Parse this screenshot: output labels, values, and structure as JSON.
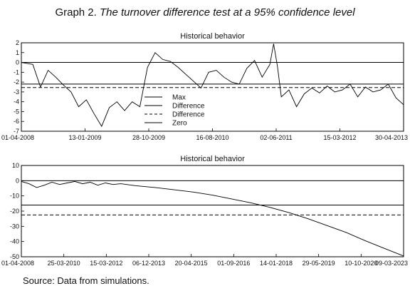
{
  "title_prefix": "Graph 2.",
  "title_italic": "The turnover difference test at a 95% confidence level",
  "source": "Source: Data from simulations.",
  "chart_data": [
    {
      "type": "line",
      "title": "Historical behavior",
      "x_tick_labels": [
        "01-04-2008",
        "13-01-2009",
        "28-10-2009",
        "16-08-2010",
        "02-06-2011",
        "15-03-2012",
        "30-04-2013"
      ],
      "ylim": [
        -7,
        2
      ],
      "yticks": [
        2,
        1,
        0,
        -1,
        -2,
        -3,
        -4,
        -5,
        -6,
        -7
      ],
      "legend": [
        "Max",
        "Difference",
        "Difference",
        "Zero"
      ],
      "legend_position": "center",
      "reference_lines": [
        {
          "style": "solid",
          "value": 0
        },
        {
          "style": "solid",
          "value": -2.2
        },
        {
          "style": "dashed",
          "value": -2.55
        }
      ],
      "series_x": [
        0,
        0.03,
        0.05,
        0.07,
        0.09,
        0.11,
        0.13,
        0.15,
        0.17,
        0.19,
        0.21,
        0.23,
        0.25,
        0.27,
        0.29,
        0.31,
        0.33,
        0.35,
        0.37,
        0.39,
        0.41,
        0.43,
        0.45,
        0.47,
        0.49,
        0.51,
        0.53,
        0.55,
        0.57,
        0.59,
        0.61,
        0.63,
        0.65,
        0.66,
        0.67,
        0.68,
        0.7,
        0.72,
        0.74,
        0.76,
        0.78,
        0.8,
        0.82,
        0.84,
        0.86,
        0.88,
        0.9,
        0.92,
        0.94,
        0.96,
        0.98,
        1.0
      ],
      "series_y": [
        0,
        -0.2,
        -2.5,
        -0.8,
        -1.5,
        -2.3,
        -3.0,
        -4.5,
        -3.8,
        -5.2,
        -6.5,
        -4.6,
        -4.0,
        -4.9,
        -4.0,
        -4.5,
        -0.5,
        1.0,
        0.3,
        0.1,
        -0.5,
        -1.2,
        -1.9,
        -2.6,
        -1.0,
        -0.8,
        -1.5,
        -2.0,
        -2.2,
        -0.6,
        0.2,
        -1.5,
        -0.2,
        1.9,
        -0.4,
        -3.5,
        -2.8,
        -4.5,
        -3.2,
        -2.6,
        -3.1,
        -2.4,
        -3.0,
        -2.8,
        -2.2,
        -3.5,
        -2.5,
        -3.0,
        -2.8,
        -2.2,
        -3.6,
        -4.3
      ]
    },
    {
      "type": "line",
      "title": "Historical behavior",
      "x_tick_labels": [
        "01-04-2008",
        "25-03-2010",
        "15-03-2012",
        "06-12-2013",
        "20-04-2015",
        "01-09-2016",
        "14-01-2018",
        "29-05-2019",
        "10-10-2020",
        "09-03-2023"
      ],
      "ylim": [
        -50,
        10
      ],
      "yticks": [
        10,
        0,
        -10,
        -20,
        -30,
        -40,
        -50
      ],
      "reference_lines": [
        {
          "style": "solid",
          "value": 0
        },
        {
          "style": "solid",
          "value": -16
        },
        {
          "style": "dashed",
          "value": -22.5
        }
      ],
      "series_x": [
        0,
        0.02,
        0.04,
        0.06,
        0.08,
        0.1,
        0.12,
        0.14,
        0.16,
        0.18,
        0.2,
        0.22,
        0.24,
        0.26,
        0.3,
        0.35,
        0.4,
        0.45,
        0.5,
        0.55,
        0.6,
        0.65,
        0.7,
        0.75,
        0.8,
        0.85,
        0.9,
        0.95,
        1.0
      ],
      "series_y": [
        -0.5,
        -2.0,
        -4.5,
        -3.0,
        -1.0,
        -2.5,
        -1.5,
        -0.5,
        -2.0,
        -1.0,
        -3.0,
        -1.5,
        -2.5,
        -2.0,
        -3.3,
        -4.5,
        -6.0,
        -7.5,
        -9.5,
        -12.0,
        -14.5,
        -17.5,
        -21.0,
        -25.0,
        -29.5,
        -34.0,
        -39.5,
        -44.5,
        -49.5
      ]
    }
  ]
}
